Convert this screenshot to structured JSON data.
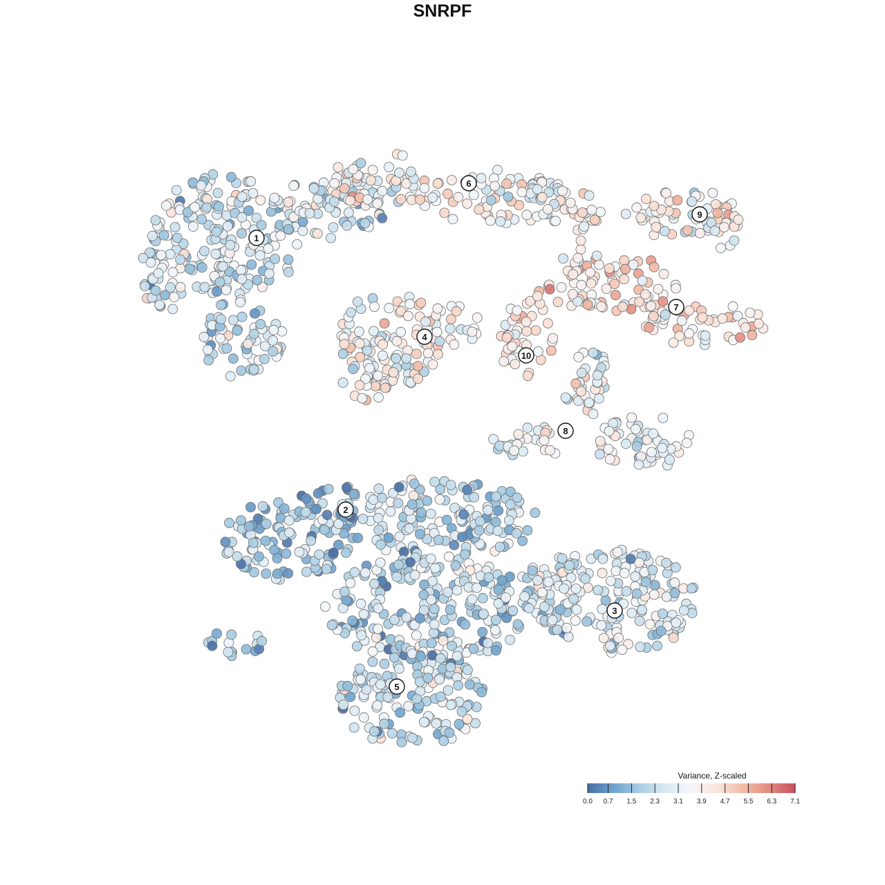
{
  "title": "SNRPF",
  "chart_data": {
    "type": "scatter",
    "title": "SNRPF",
    "xlabel": "",
    "ylabel": "",
    "grid": false,
    "legend": {
      "title": "Variance, Z-scaled",
      "position": "bottom-right",
      "orientation": "horizontal",
      "min": 0.0,
      "max": 7.1,
      "ticks": [
        "0.0",
        "0.7",
        "1.5",
        "2.3",
        "3.1",
        "3.9",
        "4.7",
        "5.5",
        "6.3",
        "7.1"
      ]
    },
    "color_scale": [
      "#4a6fa5",
      "#6ea3ce",
      "#a9cde3",
      "#d9e9f3",
      "#f5f7fa",
      "#fbe4da",
      "#f3bba7",
      "#e38a80",
      "#c8505e"
    ],
    "clusters": [
      {
        "label": "1",
        "mean_value": 2.6
      },
      {
        "label": "2",
        "mean_value": 1.6
      },
      {
        "label": "3",
        "mean_value": 2.8
      },
      {
        "label": "4",
        "mean_value": 3.6
      },
      {
        "label": "5",
        "mean_value": 2.2
      },
      {
        "label": "6",
        "mean_value": 3.7
      },
      {
        "label": "7",
        "mean_value": 4.2
      },
      {
        "label": "8",
        "mean_value": 3.3
      },
      {
        "label": "9",
        "mean_value": 3.9
      },
      {
        "label": "10",
        "mean_value": 4.3
      }
    ]
  }
}
